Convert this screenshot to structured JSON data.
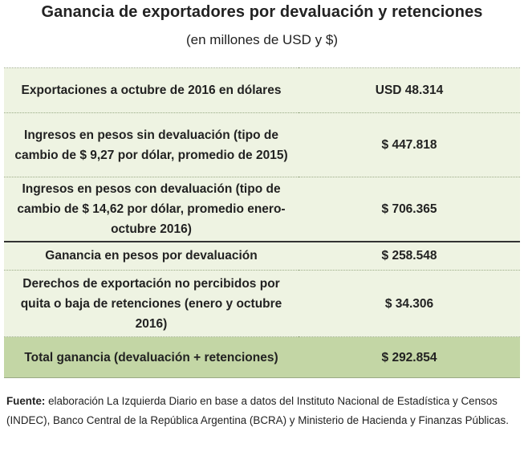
{
  "title": "Ganancia de exportadores por devaluación y retenciones",
  "subtitle": "(en millones de USD y $)",
  "rows": [
    {
      "label": "Exportaciones a octubre de 2016 en dólares",
      "value": "USD 48.314"
    },
    {
      "label": "Ingresos en pesos sin devaluación (tipo de cambio de $ 9,27 por dólar, promedio de 2015)",
      "value": "$ 447.818"
    },
    {
      "label": "Ingresos en pesos con devaluación (tipo de cambio de $ 14,62 por dólar, promedio enero-octubre 2016)",
      "value": "$ 706.365"
    },
    {
      "label": "Ganancia en pesos por devaluación",
      "value": "$ 258.548"
    },
    {
      "label": "Derechos de exportación no percibidos por quita o baja de retenciones (enero y octubre 2016)",
      "value": "$ 34.306"
    },
    {
      "label": "Total ganancia (devaluación + retenciones)",
      "value": "$ 292.854"
    }
  ],
  "source": {
    "prefix": "Fuente:",
    "text": "elaboración La Izquierda Diario en base a datos del Instituto Nacional de Estadística y Censos (INDEC), Banco Central de la República Argentina (BCRA) y Ministerio de Hacienda y Finanzas Públicas."
  },
  "colors": {
    "row_background": "#eef3e2",
    "total_background": "#c3d6a5"
  }
}
